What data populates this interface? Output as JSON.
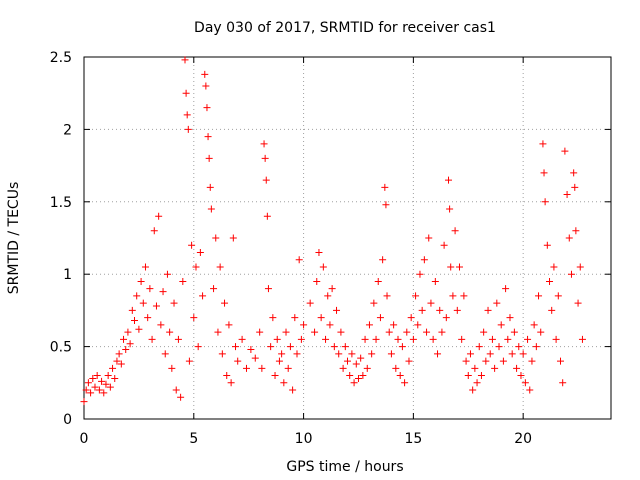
{
  "chart_data": {
    "type": "scatter",
    "title": "Day 030 of 2017, SRMTID for receiver cas1",
    "xlabel": "GPS time / hours",
    "ylabel": "SRMTID / TECUs",
    "xlim": [
      0,
      24
    ],
    "ylim": [
      0,
      2.5
    ],
    "xticks": [
      0,
      5,
      10,
      15,
      20
    ],
    "xtick_labels": [
      "0",
      "5",
      "10",
      "15",
      "20"
    ],
    "yticks": [
      0,
      0.5,
      1,
      1.5,
      2,
      2.5
    ],
    "ytick_labels": [
      "0",
      "0.5",
      "1",
      "1.5",
      "2",
      "2.5"
    ],
    "grid": true,
    "marker": "+",
    "series": [
      {
        "name": "cas1",
        "color": "#ff0000",
        "points": [
          [
            0.0,
            0.12
          ],
          [
            0.1,
            0.2
          ],
          [
            0.2,
            0.25
          ],
          [
            0.3,
            0.18
          ],
          [
            0.4,
            0.28
          ],
          [
            0.5,
            0.22
          ],
          [
            0.6,
            0.3
          ],
          [
            0.7,
            0.2
          ],
          [
            0.8,
            0.26
          ],
          [
            0.9,
            0.18
          ],
          [
            1.0,
            0.24
          ],
          [
            1.1,
            0.3
          ],
          [
            1.2,
            0.22
          ],
          [
            1.3,
            0.35
          ],
          [
            1.4,
            0.28
          ],
          [
            1.5,
            0.4
          ],
          [
            1.6,
            0.45
          ],
          [
            1.7,
            0.38
          ],
          [
            1.8,
            0.55
          ],
          [
            1.9,
            0.48
          ],
          [
            2.0,
            0.6
          ],
          [
            2.1,
            0.52
          ],
          [
            2.2,
            0.75
          ],
          [
            2.3,
            0.68
          ],
          [
            2.4,
            0.85
          ],
          [
            2.5,
            0.62
          ],
          [
            2.6,
            0.95
          ],
          [
            2.7,
            0.8
          ],
          [
            2.8,
            1.05
          ],
          [
            2.9,
            0.7
          ],
          [
            3.0,
            0.9
          ],
          [
            3.1,
            0.55
          ],
          [
            3.2,
            1.3
          ],
          [
            3.3,
            0.78
          ],
          [
            3.4,
            1.4
          ],
          [
            3.5,
            0.65
          ],
          [
            3.6,
            0.88
          ],
          [
            3.7,
            0.45
          ],
          [
            3.8,
            1.0
          ],
          [
            3.9,
            0.6
          ],
          [
            4.0,
            0.35
          ],
          [
            4.1,
            0.8
          ],
          [
            4.2,
            0.2
          ],
          [
            4.3,
            0.55
          ],
          [
            4.4,
            0.15
          ],
          [
            4.5,
            0.95
          ],
          [
            4.6,
            2.48
          ],
          [
            4.65,
            2.25
          ],
          [
            4.7,
            2.1
          ],
          [
            4.75,
            2.0
          ],
          [
            4.8,
            0.4
          ],
          [
            4.9,
            1.2
          ],
          [
            5.0,
            0.7
          ],
          [
            5.1,
            1.05
          ],
          [
            5.2,
            0.5
          ],
          [
            5.3,
            1.15
          ],
          [
            5.4,
            0.85
          ],
          [
            5.5,
            2.38
          ],
          [
            5.55,
            2.3
          ],
          [
            5.6,
            2.15
          ],
          [
            5.65,
            1.95
          ],
          [
            5.7,
            1.8
          ],
          [
            5.75,
            1.6
          ],
          [
            5.8,
            1.45
          ],
          [
            5.9,
            0.9
          ],
          [
            6.0,
            1.25
          ],
          [
            6.1,
            0.6
          ],
          [
            6.2,
            1.05
          ],
          [
            6.3,
            0.45
          ],
          [
            6.4,
            0.8
          ],
          [
            6.5,
            0.3
          ],
          [
            6.6,
            0.65
          ],
          [
            6.7,
            0.25
          ],
          [
            6.8,
            1.25
          ],
          [
            6.9,
            0.5
          ],
          [
            7.0,
            0.4
          ],
          [
            7.2,
            0.55
          ],
          [
            7.4,
            0.35
          ],
          [
            7.6,
            0.48
          ],
          [
            7.8,
            0.42
          ],
          [
            8.0,
            0.6
          ],
          [
            8.1,
            0.35
          ],
          [
            8.2,
            1.9
          ],
          [
            8.25,
            1.8
          ],
          [
            8.3,
            1.65
          ],
          [
            8.35,
            1.4
          ],
          [
            8.4,
            0.9
          ],
          [
            8.5,
            0.5
          ],
          [
            8.6,
            0.7
          ],
          [
            8.7,
            0.3
          ],
          [
            8.8,
            0.55
          ],
          [
            8.9,
            0.4
          ],
          [
            9.0,
            0.45
          ],
          [
            9.1,
            0.25
          ],
          [
            9.2,
            0.6
          ],
          [
            9.3,
            0.35
          ],
          [
            9.4,
            0.5
          ],
          [
            9.5,
            0.2
          ],
          [
            9.6,
            0.7
          ],
          [
            9.7,
            0.45
          ],
          [
            9.8,
            1.1
          ],
          [
            9.9,
            0.55
          ],
          [
            10.0,
            0.65
          ],
          [
            10.3,
            0.8
          ],
          [
            10.5,
            0.6
          ],
          [
            10.6,
            0.95
          ],
          [
            10.7,
            1.15
          ],
          [
            10.8,
            0.7
          ],
          [
            10.9,
            1.05
          ],
          [
            11.0,
            0.55
          ],
          [
            11.1,
            0.85
          ],
          [
            11.2,
            0.65
          ],
          [
            11.3,
            0.9
          ],
          [
            11.4,
            0.5
          ],
          [
            11.5,
            0.75
          ],
          [
            11.6,
            0.45
          ],
          [
            11.7,
            0.6
          ],
          [
            11.8,
            0.35
          ],
          [
            11.9,
            0.5
          ],
          [
            12.0,
            0.4
          ],
          [
            12.1,
            0.3
          ],
          [
            12.2,
            0.45
          ],
          [
            12.3,
            0.25
          ],
          [
            12.4,
            0.38
          ],
          [
            12.5,
            0.28
          ],
          [
            12.6,
            0.42
          ],
          [
            12.7,
            0.3
          ],
          [
            12.8,
            0.55
          ],
          [
            12.9,
            0.35
          ],
          [
            13.0,
            0.65
          ],
          [
            13.1,
            0.45
          ],
          [
            13.2,
            0.8
          ],
          [
            13.3,
            0.55
          ],
          [
            13.4,
            0.95
          ],
          [
            13.5,
            0.7
          ],
          [
            13.6,
            1.1
          ],
          [
            13.7,
            1.6
          ],
          [
            13.75,
            1.48
          ],
          [
            13.8,
            0.85
          ],
          [
            13.9,
            0.6
          ],
          [
            14.0,
            0.45
          ],
          [
            14.1,
            0.65
          ],
          [
            14.2,
            0.35
          ],
          [
            14.3,
            0.55
          ],
          [
            14.4,
            0.3
          ],
          [
            14.5,
            0.5
          ],
          [
            14.6,
            0.25
          ],
          [
            14.7,
            0.6
          ],
          [
            14.8,
            0.4
          ],
          [
            14.9,
            0.7
          ],
          [
            15.0,
            0.55
          ],
          [
            15.1,
            0.85
          ],
          [
            15.2,
            0.65
          ],
          [
            15.3,
            1.0
          ],
          [
            15.4,
            0.75
          ],
          [
            15.5,
            1.1
          ],
          [
            15.6,
            0.6
          ],
          [
            15.7,
            1.25
          ],
          [
            15.8,
            0.8
          ],
          [
            15.9,
            0.55
          ],
          [
            16.0,
            0.95
          ],
          [
            16.1,
            0.45
          ],
          [
            16.2,
            0.75
          ],
          [
            16.3,
            0.6
          ],
          [
            16.4,
            1.2
          ],
          [
            16.5,
            0.7
          ],
          [
            16.6,
            1.65
          ],
          [
            16.65,
            1.45
          ],
          [
            16.7,
            1.05
          ],
          [
            16.8,
            0.85
          ],
          [
            16.9,
            1.3
          ],
          [
            17.0,
            0.75
          ],
          [
            17.1,
            1.05
          ],
          [
            17.2,
            0.55
          ],
          [
            17.3,
            0.85
          ],
          [
            17.4,
            0.4
          ],
          [
            17.5,
            0.3
          ],
          [
            17.6,
            0.45
          ],
          [
            17.7,
            0.2
          ],
          [
            17.8,
            0.35
          ],
          [
            17.9,
            0.25
          ],
          [
            18.0,
            0.5
          ],
          [
            18.1,
            0.3
          ],
          [
            18.2,
            0.6
          ],
          [
            18.3,
            0.4
          ],
          [
            18.4,
            0.75
          ],
          [
            18.5,
            0.45
          ],
          [
            18.6,
            0.55
          ],
          [
            18.7,
            0.35
          ],
          [
            18.8,
            0.8
          ],
          [
            18.9,
            0.5
          ],
          [
            19.0,
            0.65
          ],
          [
            19.1,
            0.4
          ],
          [
            19.2,
            0.9
          ],
          [
            19.3,
            0.55
          ],
          [
            19.4,
            0.7
          ],
          [
            19.5,
            0.45
          ],
          [
            19.6,
            0.6
          ],
          [
            19.7,
            0.35
          ],
          [
            19.8,
            0.5
          ],
          [
            19.9,
            0.3
          ],
          [
            20.0,
            0.45
          ],
          [
            20.1,
            0.25
          ],
          [
            20.2,
            0.55
          ],
          [
            20.3,
            0.2
          ],
          [
            20.4,
            0.4
          ],
          [
            20.5,
            0.65
          ],
          [
            20.6,
            0.5
          ],
          [
            20.7,
            0.85
          ],
          [
            20.8,
            0.6
          ],
          [
            20.9,
            1.9
          ],
          [
            20.95,
            1.7
          ],
          [
            21.0,
            1.5
          ],
          [
            21.1,
            1.2
          ],
          [
            21.2,
            0.95
          ],
          [
            21.3,
            0.75
          ],
          [
            21.4,
            1.05
          ],
          [
            21.5,
            0.55
          ],
          [
            21.6,
            0.85
          ],
          [
            21.7,
            0.4
          ],
          [
            21.8,
            0.25
          ],
          [
            21.9,
            1.85
          ],
          [
            22.0,
            1.55
          ],
          [
            22.1,
            1.25
          ],
          [
            22.2,
            1.0
          ],
          [
            22.3,
            1.7
          ],
          [
            22.35,
            1.6
          ],
          [
            22.4,
            1.3
          ],
          [
            22.5,
            0.8
          ],
          [
            22.6,
            1.05
          ],
          [
            22.7,
            0.55
          ]
        ]
      }
    ]
  }
}
